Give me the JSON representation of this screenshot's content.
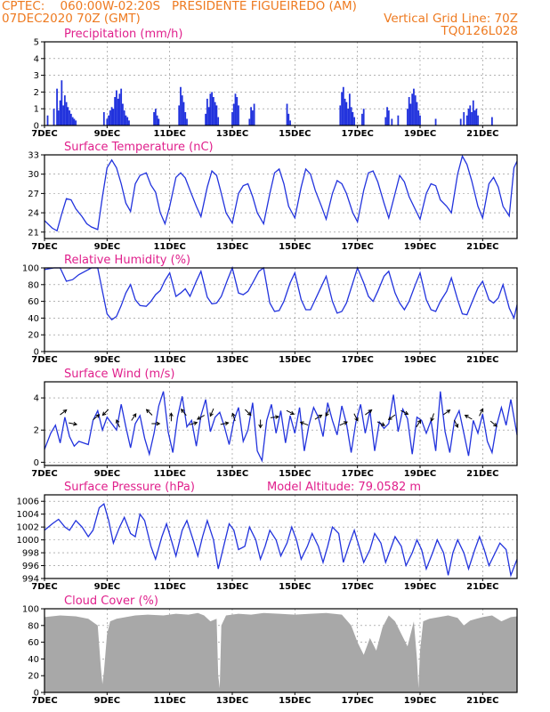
{
  "header": {
    "line1_left": "CPTEC:    060:00W-02:20S   PRESIDENTE FIGUEIREDO (AM)",
    "line2_left": "07DEC2020 70Z (GMT)",
    "line2_right": "Vertical Grid Line: 70Z",
    "line3_right": "TQ0126L028"
  },
  "colors": {
    "header": "#ee7a20",
    "title": "#e0208c",
    "series": "#2233dd",
    "cloud": "#a8a8a8"
  },
  "chart_data": [
    {
      "type": "bar",
      "title": "Precipitation (mm/h)",
      "ylim": [
        0,
        5
      ],
      "yticks": [
        0,
        1,
        2,
        3,
        4,
        5
      ],
      "xlim": [
        7,
        22.1
      ],
      "xticks": [
        "7DEC",
        "9DEC",
        "11DEC",
        "13DEC",
        "15DEC",
        "17DEC",
        "19DEC",
        "21DEC"
      ],
      "x": [
        7.1,
        7.3,
        7.4,
        7.45,
        7.5,
        7.55,
        7.6,
        7.65,
        7.7,
        7.75,
        7.8,
        7.85,
        7.9,
        7.95,
        8.0,
        8.9,
        9.0,
        9.05,
        9.1,
        9.15,
        9.2,
        9.25,
        9.3,
        9.35,
        9.4,
        9.45,
        9.5,
        9.55,
        9.6,
        9.65,
        9.7,
        10.5,
        10.55,
        10.6,
        10.65,
        11.3,
        11.35,
        11.4,
        11.45,
        11.5,
        11.55,
        12.15,
        12.2,
        12.25,
        12.3,
        12.35,
        12.4,
        12.45,
        12.5,
        12.55,
        13.0,
        13.05,
        13.1,
        13.15,
        13.2,
        13.55,
        13.6,
        13.65,
        13.7,
        14.75,
        14.8,
        14.85,
        16.45,
        16.5,
        16.55,
        16.6,
        16.65,
        16.7,
        16.75,
        16.8,
        16.85,
        16.9,
        17.15,
        17.2,
        17.9,
        17.95,
        18.0,
        18.1,
        18.3,
        18.6,
        18.65,
        18.7,
        18.75,
        18.8,
        18.85,
        18.9,
        18.95,
        19.0,
        19.5,
        20.3,
        20.4,
        20.5,
        20.55,
        20.6,
        20.65,
        20.7,
        20.75,
        20.8,
        20.85,
        21.3
      ],
      "values": [
        0.6,
        1.0,
        2.2,
        0.9,
        1.5,
        2.7,
        1.2,
        1.8,
        1.4,
        1.1,
        0.9,
        0.7,
        0.5,
        0.4,
        0.3,
        0.8,
        0.4,
        0.6,
        0.9,
        1.1,
        1.0,
        1.7,
        2.1,
        1.6,
        1.9,
        2.2,
        1.3,
        0.9,
        0.6,
        0.5,
        0.3,
        0.8,
        1.0,
        0.6,
        0.4,
        1.2,
        2.3,
        1.8,
        1.4,
        0.8,
        0.4,
        0.7,
        1.6,
        1.1,
        1.9,
        2.0,
        1.7,
        1.4,
        1.2,
        0.5,
        0.8,
        1.3,
        1.9,
        1.7,
        1.2,
        0.4,
        1.1,
        0.9,
        1.3,
        1.3,
        0.7,
        0.3,
        1.2,
        2.0,
        2.3,
        1.6,
        1.4,
        1.0,
        1.9,
        1.1,
        0.8,
        0.5,
        0.7,
        1.0,
        0.5,
        1.1,
        0.9,
        0.4,
        0.6,
        1.0,
        1.7,
        1.3,
        1.9,
        2.2,
        1.8,
        1.4,
        0.9,
        0.6,
        0.4,
        0.4,
        0.8,
        0.6,
        1.0,
        1.2,
        0.8,
        1.5,
        0.9,
        1.0,
        0.6,
        0.5
      ]
    },
    {
      "type": "line",
      "title": "Surface Temperature (nC)",
      "ylim": [
        20,
        33
      ],
      "yticks": [
        21,
        24,
        27,
        30,
        33
      ],
      "xlim": [
        7,
        22.1
      ],
      "xticks": [
        "7DEC",
        "9DEC",
        "11DEC",
        "13DEC",
        "15DEC",
        "17DEC",
        "19DEC",
        "21DEC"
      ],
      "x": [
        7.0,
        7.25,
        7.4,
        7.55,
        7.7,
        7.85,
        8.0,
        8.2,
        8.35,
        8.5,
        8.7,
        8.85,
        9.0,
        9.15,
        9.3,
        9.45,
        9.6,
        9.75,
        9.9,
        10.05,
        10.25,
        10.4,
        10.55,
        10.7,
        10.85,
        11.0,
        11.2,
        11.35,
        11.5,
        11.65,
        11.85,
        12.0,
        12.2,
        12.35,
        12.5,
        12.65,
        12.8,
        13.0,
        13.2,
        13.35,
        13.5,
        13.65,
        13.8,
        14.0,
        14.2,
        14.35,
        14.5,
        14.65,
        14.8,
        15.0,
        15.2,
        15.35,
        15.5,
        15.65,
        15.85,
        16.0,
        16.2,
        16.35,
        16.5,
        16.65,
        16.85,
        17.0,
        17.2,
        17.35,
        17.5,
        17.65,
        17.85,
        18.0,
        18.2,
        18.35,
        18.5,
        18.65,
        18.85,
        19.0,
        19.2,
        19.35,
        19.5,
        19.65,
        19.85,
        20.0,
        20.2,
        20.35,
        20.5,
        20.65,
        20.85,
        21.0,
        21.2,
        21.35,
        21.5,
        21.65,
        21.85,
        22.0,
        22.1
      ],
      "values": [
        22.8,
        21.6,
        21.2,
        23.8,
        26.2,
        26.0,
        24.6,
        23.4,
        22.3,
        21.8,
        21.4,
        26.5,
        31.0,
        32.2,
        31.0,
        28.5,
        25.5,
        24.2,
        28.5,
        29.8,
        30.2,
        28.3,
        27.2,
        24.0,
        22.3,
        25.0,
        29.5,
        30.2,
        29.4,
        27.5,
        25.0,
        23.4,
        28.0,
        30.5,
        29.8,
        27.0,
        24.0,
        22.4,
        27.0,
        28.2,
        28.5,
        26.5,
        24.0,
        22.3,
        27.0,
        30.2,
        30.8,
        28.5,
        25.0,
        23.2,
        28.0,
        30.8,
        30.0,
        27.5,
        25.0,
        23.0,
        27.0,
        29.0,
        28.5,
        27.0,
        24.0,
        22.6,
        27.5,
        30.2,
        30.5,
        28.8,
        25.5,
        23.2,
        27.0,
        29.8,
        28.8,
        26.5,
        24.5,
        23.0,
        27.0,
        28.5,
        28.2,
        26.0,
        25.0,
        24.0,
        30.0,
        32.8,
        31.5,
        29.0,
        25.0,
        23.2,
        28.5,
        29.5,
        28.0,
        25.0,
        23.5,
        31.0,
        32.0
      ]
    },
    {
      "type": "line",
      "title": "Relative Humidity (%)",
      "ylim": [
        0,
        100
      ],
      "yticks": [
        0,
        20,
        40,
        60,
        80,
        100
      ],
      "xlim": [
        7,
        22.1
      ],
      "xticks": [
        "7DEC",
        "9DEC",
        "11DEC",
        "13DEC",
        "15DEC",
        "17DEC",
        "19DEC",
        "21DEC"
      ],
      "x": [
        7.0,
        7.3,
        7.5,
        7.7,
        7.9,
        8.1,
        8.3,
        8.5,
        8.7,
        8.85,
        9.0,
        9.15,
        9.3,
        9.45,
        9.6,
        9.75,
        9.9,
        10.05,
        10.25,
        10.4,
        10.55,
        10.7,
        10.85,
        11.0,
        11.2,
        11.35,
        11.5,
        11.65,
        11.85,
        12.0,
        12.2,
        12.35,
        12.5,
        12.65,
        12.85,
        13.0,
        13.2,
        13.35,
        13.5,
        13.65,
        13.85,
        14.0,
        14.2,
        14.35,
        14.5,
        14.65,
        14.85,
        15.0,
        15.2,
        15.35,
        15.5,
        15.65,
        15.85,
        16.0,
        16.2,
        16.35,
        16.5,
        16.65,
        16.85,
        17.0,
        17.2,
        17.35,
        17.5,
        17.65,
        17.85,
        18.0,
        18.2,
        18.35,
        18.5,
        18.65,
        18.85,
        19.0,
        19.2,
        19.35,
        19.5,
        19.65,
        19.85,
        20.0,
        20.2,
        20.35,
        20.5,
        20.65,
        20.85,
        21.0,
        21.2,
        21.35,
        21.5,
        21.65,
        21.85,
        22.0,
        22.1
      ],
      "values": [
        98,
        100,
        100,
        84,
        86,
        92,
        96,
        100,
        100,
        72,
        45,
        38,
        42,
        55,
        70,
        80,
        62,
        55,
        54,
        60,
        68,
        73,
        85,
        94,
        66,
        70,
        75,
        66,
        84,
        96,
        65,
        57,
        58,
        66,
        86,
        100,
        70,
        68,
        72,
        82,
        96,
        100,
        58,
        48,
        49,
        60,
        82,
        94,
        62,
        50,
        50,
        62,
        78,
        90,
        60,
        46,
        48,
        58,
        82,
        100,
        82,
        66,
        60,
        72,
        90,
        96,
        70,
        58,
        50,
        60,
        80,
        94,
        62,
        50,
        48,
        60,
        72,
        88,
        62,
        45,
        44,
        58,
        76,
        84,
        62,
        58,
        64,
        80,
        52,
        40,
        56
      ]
    },
    {
      "type": "line",
      "title": "Surface Wind (m/s)",
      "ylim": [
        -0.2,
        5
      ],
      "yticks": [
        0,
        2,
        4
      ],
      "xlim": [
        7,
        22.1
      ],
      "xticks": [
        "7DEC",
        "9DEC",
        "11DEC",
        "13DEC",
        "15DEC",
        "17DEC",
        "19DEC",
        "21DEC"
      ],
      "x": [
        7.0,
        7.2,
        7.35,
        7.5,
        7.65,
        7.8,
        7.95,
        8.1,
        8.25,
        8.4,
        8.55,
        8.7,
        8.85,
        9.0,
        9.15,
        9.3,
        9.45,
        9.6,
        9.75,
        9.9,
        10.05,
        10.2,
        10.35,
        10.5,
        10.65,
        10.8,
        10.95,
        11.1,
        11.25,
        11.4,
        11.55,
        11.7,
        11.85,
        12.0,
        12.15,
        12.3,
        12.45,
        12.6,
        12.75,
        12.9,
        13.05,
        13.2,
        13.35,
        13.5,
        13.65,
        13.8,
        13.95,
        14.1,
        14.25,
        14.4,
        14.55,
        14.7,
        14.85,
        15.0,
        15.15,
        15.3,
        15.45,
        15.6,
        15.75,
        15.9,
        16.05,
        16.2,
        16.35,
        16.5,
        16.65,
        16.8,
        16.95,
        17.1,
        17.25,
        17.4,
        17.55,
        17.7,
        17.85,
        18.0,
        18.15,
        18.3,
        18.45,
        18.6,
        18.75,
        18.9,
        19.05,
        19.2,
        19.35,
        19.5,
        19.65,
        19.8,
        19.95,
        20.1,
        20.25,
        20.4,
        20.55,
        20.7,
        20.85,
        21.0,
        21.15,
        21.3,
        21.45,
        21.6,
        21.75,
        21.9,
        22.1
      ],
      "values": [
        0.8,
        1.8,
        2.3,
        1.2,
        2.8,
        1.6,
        1.0,
        1.3,
        1.2,
        1.1,
        2.6,
        3.2,
        2.0,
        2.8,
        2.4,
        2.0,
        3.6,
        2.2,
        0.9,
        2.4,
        2.9,
        1.5,
        0.5,
        1.8,
        3.5,
        4.4,
        1.9,
        0.6,
        2.8,
        4.1,
        2.2,
        2.6,
        1.0,
        2.9,
        3.9,
        1.9,
        2.8,
        3.1,
        2.2,
        1.1,
        2.6,
        3.4,
        1.3,
        2.0,
        3.7,
        0.7,
        0.1,
        2.6,
        3.6,
        1.8,
        3.2,
        1.2,
        2.9,
        1.8,
        3.4,
        0.7,
        2.3,
        3.4,
        2.8,
        1.6,
        3.7,
        2.6,
        1.7,
        3.5,
        2.4,
        0.6,
        2.5,
        3.6,
        1.8,
        3.2,
        0.7,
        2.5,
        2.1,
        2.4,
        4.2,
        1.9,
        3.3,
        2.7,
        0.5,
        2.8,
        2.6,
        1.8,
        2.6,
        0.7,
        4.4,
        1.9,
        0.6,
        2.6,
        3.2,
        1.8,
        0.4,
        2.6,
        1.8,
        3.0,
        1.3,
        0.6,
        2.3,
        3.4,
        2.3,
        3.9,
        1.7
      ],
      "arrows_x": [
        7.6,
        7.9,
        8.65,
        8.95,
        9.35,
        9.85,
        10.35,
        10.55,
        11.05,
        11.45,
        11.75,
        12.0,
        12.35,
        12.75,
        13.05,
        13.5,
        13.9,
        14.35,
        14.85,
        15.3,
        15.75,
        16.05,
        16.55,
        16.95,
        17.35,
        17.75,
        18.1,
        18.5,
        18.95,
        19.4,
        19.85,
        20.15,
        20.55,
        20.95,
        21.35
      ],
      "arrows_u": [
        0.8,
        1.0,
        0.6,
        -0.5,
        -0.3,
        0.4,
        -0.3,
        0.9,
        0.0,
        -0.4,
        1.0,
        -0.7,
        -0.3,
        1.0,
        -0.2,
        0.5,
        0.0,
        0.8,
        0.6,
        -0.8,
        0.8,
        -0.3,
        0.7,
        0.3,
        0.8,
        0.6,
        -0.7,
        0.6,
        0.5,
        -0.2,
        0.7,
        0.4,
        -0.7,
        0.3,
        0.6
      ],
      "arrows_v": [
        0.6,
        -0.2,
        0.5,
        -0.5,
        0.7,
        0.6,
        0.3,
        0.0,
        0.5,
        0.5,
        0.3,
        -0.4,
        -0.7,
        0.2,
        0.6,
        -0.5,
        -0.8,
        0.1,
        -0.3,
        0.3,
        0.5,
        -0.6,
        0.3,
        -0.6,
        0.6,
        -0.3,
        -0.5,
        -0.3,
        0.8,
        -0.6,
        0.5,
        -0.8,
        0.4,
        0.6,
        -0.5
      ]
    },
    {
      "type": "line",
      "title": "Surface Pressure (hPa)",
      "annotation": "Model Altitude: 79.0582  m",
      "ylim": [
        994,
        1007
      ],
      "yticks": [
        994,
        996,
        998,
        1000,
        1002,
        1004,
        1006
      ],
      "xlim": [
        7,
        22.1
      ],
      "xticks": [
        "7DEC",
        "9DEC",
        "11DEC",
        "13DEC",
        "15DEC",
        "17DEC",
        "19DEC",
        "21DEC"
      ],
      "x": [
        7.0,
        7.25,
        7.45,
        7.65,
        7.8,
        8.0,
        8.2,
        8.4,
        8.55,
        8.75,
        8.9,
        9.05,
        9.2,
        9.4,
        9.55,
        9.75,
        9.9,
        10.05,
        10.2,
        10.4,
        10.55,
        10.75,
        10.9,
        11.05,
        11.2,
        11.4,
        11.55,
        11.75,
        11.9,
        12.05,
        12.2,
        12.4,
        12.55,
        12.75,
        12.9,
        13.05,
        13.2,
        13.4,
        13.55,
        13.75,
        13.9,
        14.05,
        14.2,
        14.4,
        14.55,
        14.75,
        14.9,
        15.05,
        15.2,
        15.4,
        15.55,
        15.75,
        15.9,
        16.05,
        16.2,
        16.4,
        16.55,
        16.75,
        16.9,
        17.05,
        17.2,
        17.4,
        17.55,
        17.75,
        17.9,
        18.05,
        18.2,
        18.4,
        18.55,
        18.75,
        18.9,
        19.05,
        19.2,
        19.4,
        19.55,
        19.75,
        19.9,
        20.05,
        20.2,
        20.4,
        20.55,
        20.75,
        20.9,
        21.05,
        21.2,
        21.4,
        21.55,
        21.75,
        21.9,
        22.1
      ],
      "values": [
        1001.5,
        1002.5,
        1003.2,
        1002.0,
        1001.5,
        1003.0,
        1002.0,
        1000.5,
        1001.5,
        1005.0,
        1005.6,
        1003.0,
        999.5,
        1002.0,
        1003.5,
        1001.0,
        1000.5,
        1004.0,
        1003.0,
        999.0,
        997.0,
        1000.5,
        1002.5,
        1000.0,
        997.5,
        1001.5,
        1003.0,
        1000.0,
        997.5,
        1000.5,
        1003.0,
        1000.0,
        995.5,
        999.5,
        1002.5,
        1001.5,
        998.5,
        999.0,
        1002.0,
        1000.0,
        997.0,
        999.0,
        1001.5,
        1000.0,
        997.5,
        999.5,
        1002.0,
        1000.0,
        997.0,
        999.0,
        1001.0,
        999.0,
        996.5,
        999.0,
        1002.0,
        1001.0,
        996.5,
        999.5,
        1001.5,
        999.0,
        996.5,
        998.5,
        1001.0,
        999.5,
        996.5,
        998.5,
        1000.5,
        999.0,
        996.0,
        998.0,
        1000.0,
        998.5,
        995.5,
        998.0,
        1000.0,
        998.0,
        994.5,
        998.0,
        1000.0,
        998.0,
        995.5,
        998.5,
        1000.5,
        998.5,
        996.0,
        998.0,
        999.5,
        998.5,
        994.5,
        997.0
      ]
    },
    {
      "type": "area",
      "title": "Cloud Cover (%)",
      "ylim": [
        0,
        100
      ],
      "yticks": [
        0,
        20,
        40,
        60,
        80,
        100
      ],
      "xlim": [
        7,
        22.1
      ],
      "xticks": [
        "7DEC",
        "9DEC",
        "11DEC",
        "13DEC",
        "15DEC",
        "17DEC",
        "19DEC",
        "21DEC"
      ],
      "x": [
        7.0,
        7.5,
        8.0,
        8.4,
        8.7,
        8.8,
        8.85,
        8.9,
        9.0,
        9.1,
        9.3,
        9.6,
        9.9,
        10.3,
        10.8,
        11.2,
        11.6,
        11.9,
        12.1,
        12.3,
        12.5,
        12.55,
        12.6,
        12.65,
        12.8,
        13.2,
        13.6,
        14.0,
        14.5,
        15.0,
        15.5,
        16.0,
        16.5,
        16.8,
        17.0,
        17.2,
        17.4,
        17.6,
        17.8,
        18.0,
        18.2,
        18.4,
        18.6,
        18.8,
        18.9,
        18.95,
        19.0,
        19.1,
        19.3,
        19.6,
        19.9,
        20.2,
        20.4,
        20.6,
        20.8,
        21.0,
        21.3,
        21.6,
        21.9,
        22.1
      ],
      "values": [
        90,
        92,
        91,
        88,
        80,
        30,
        10,
        25,
        70,
        85,
        88,
        90,
        92,
        93,
        92,
        94,
        93,
        95,
        92,
        85,
        88,
        20,
        5,
        80,
        92,
        94,
        93,
        95,
        94,
        93,
        94,
        95,
        93,
        80,
        60,
        45,
        65,
        50,
        78,
        92,
        85,
        70,
        55,
        85,
        40,
        5,
        50,
        85,
        88,
        90,
        92,
        89,
        80,
        86,
        88,
        90,
        92,
        85,
        90,
        91
      ]
    }
  ]
}
